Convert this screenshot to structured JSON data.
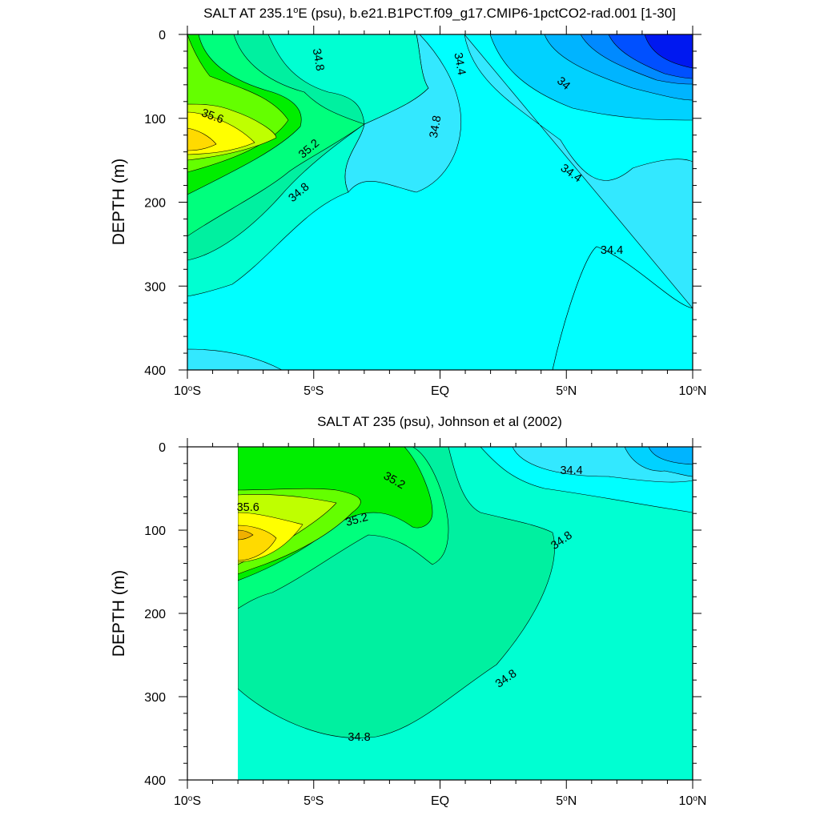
{
  "chart_data": [
    {
      "type": "contour",
      "title": "SALT AT 235.1°E (psu), b.e21.B1PCT.f09_g17.CMIP6-1pctCO2-rad.001 [1-30]",
      "title_main": "SALT AT 235.1",
      "title_sup": "o",
      "title_rest": "E (psu), b.e21.B1PCT.f09_g17.CMIP6-1pctCO2-rad.001 [1-30]",
      "ylabel": "DEPTH (m)",
      "xlim": [
        -10,
        10
      ],
      "ylim": [
        400,
        0
      ],
      "x_ticks": [
        -10,
        -5,
        0,
        5,
        10
      ],
      "x_tick_labels": [
        {
          "main": "10",
          "sup": "o",
          "rest": "S"
        },
        {
          "main": "5",
          "sup": "o",
          "rest": "S"
        },
        {
          "main": "EQ",
          "sup": "",
          "rest": ""
        },
        {
          "main": "5",
          "sup": "o",
          "rest": "N"
        },
        {
          "main": "10",
          "sup": "o",
          "rest": "N"
        }
      ],
      "y_ticks": [
        0,
        100,
        200,
        300,
        400
      ],
      "y_tick_labels": [
        "0",
        "100",
        "200",
        "300",
        "400"
      ],
      "contour_levels": [
        33.6,
        33.8,
        34.0,
        34.2,
        34.4,
        34.6,
        34.8,
        35.0,
        35.2,
        35.4,
        35.6,
        35.8
      ],
      "contour_labels": [
        {
          "text": "34.8",
          "x": -4.8,
          "y": 30,
          "angle": 80
        },
        {
          "text": "34.4",
          "x": 0.8,
          "y": 35,
          "angle": 80
        },
        {
          "text": "34",
          "x": 4.9,
          "y": 58,
          "angle": 40
        },
        {
          "text": "35.6",
          "x": -9.0,
          "y": 97,
          "angle": 20
        },
        {
          "text": "34.8",
          "x": -0.2,
          "y": 110,
          "angle": -80
        },
        {
          "text": "35.2",
          "x": -5.2,
          "y": 136,
          "angle": -40
        },
        {
          "text": "34.4",
          "x": 5.2,
          "y": 165,
          "angle": 35
        },
        {
          "text": "34.8",
          "x": -5.6,
          "y": 188,
          "angle": -40
        },
        {
          "text": "34.4",
          "x": 6.8,
          "y": 257,
          "angle": 0
        }
      ]
    },
    {
      "type": "contour",
      "title": "SALT AT 235 (psu), Johnson et al (2002)",
      "ylabel": "DEPTH (m)",
      "xlim": [
        -10,
        10
      ],
      "ylim": [
        400,
        0
      ],
      "x_ticks": [
        -10,
        -5,
        0,
        5,
        10
      ],
      "x_tick_labels": [
        {
          "main": "10",
          "sup": "o",
          "rest": "S"
        },
        {
          "main": "5",
          "sup": "o",
          "rest": "S"
        },
        {
          "main": "EQ",
          "sup": "",
          "rest": ""
        },
        {
          "main": "5",
          "sup": "o",
          "rest": "N"
        },
        {
          "main": "10",
          "sup": "o",
          "rest": "N"
        }
      ],
      "y_ticks": [
        0,
        100,
        200,
        300,
        400
      ],
      "y_tick_labels": [
        "0",
        "100",
        "200",
        "300",
        "400"
      ],
      "data_xlim": [
        -8,
        10
      ],
      "contour_levels": [
        34.0,
        34.2,
        34.4,
        34.6,
        34.8,
        35.0,
        35.2,
        35.4,
        35.6,
        35.8
      ],
      "contour_labels": [
        {
          "text": "35.2",
          "x": -1.8,
          "y": 40,
          "angle": 30
        },
        {
          "text": "34.4",
          "x": 5.2,
          "y": 28,
          "angle": 0
        },
        {
          "text": "35.6",
          "x": -7.6,
          "y": 72,
          "angle": 0
        },
        {
          "text": "35.2",
          "x": -3.3,
          "y": 87,
          "angle": -15
        },
        {
          "text": "34.8",
          "x": 4.8,
          "y": 112,
          "angle": -35
        },
        {
          "text": "34.8",
          "x": 2.6,
          "y": 278,
          "angle": -35
        },
        {
          "text": "34.8",
          "x": -3.2,
          "y": 348,
          "angle": 0
        }
      ]
    }
  ]
}
